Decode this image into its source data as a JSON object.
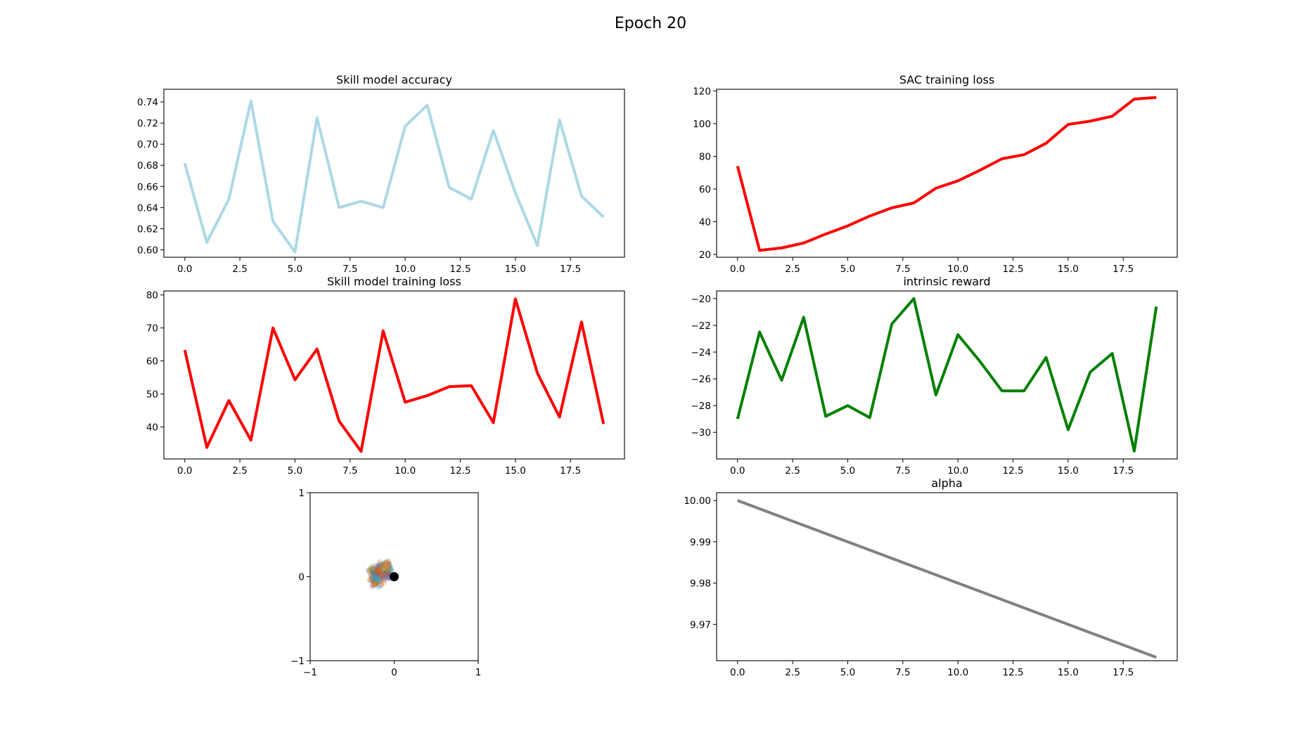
{
  "figure": {
    "suptitle": "Epoch 20"
  },
  "chart_data": [
    {
      "type": "line",
      "title": "Skill model accuracy",
      "xlabel": "",
      "ylabel": "",
      "x": [
        0,
        1,
        2,
        3,
        4,
        5,
        6,
        7,
        8,
        9,
        10,
        11,
        12,
        13,
        14,
        15,
        16,
        17,
        18,
        19
      ],
      "series": [
        {
          "values": [
            0.682,
            0.607,
            0.648,
            0.741,
            0.627,
            0.598,
            0.725,
            0.64,
            0.646,
            0.64,
            0.717,
            0.737,
            0.659,
            0.648,
            0.713,
            0.654,
            0.604,
            0.723,
            0.651,
            0.631
          ],
          "color": "#add8e6"
        }
      ],
      "xlim": [
        -0.95,
        19.95
      ],
      "ylim": [
        0.593,
        0.752
      ],
      "xticks": [
        0,
        2.5,
        5,
        7.5,
        10,
        12.5,
        15,
        17.5
      ],
      "xtick_labels": [
        "0.0",
        "2.5",
        "5.0",
        "7.5",
        "10.0",
        "12.5",
        "15.0",
        "17.5"
      ],
      "yticks": [
        0.6,
        0.62,
        0.64,
        0.66,
        0.68,
        0.7,
        0.72,
        0.74
      ],
      "ytick_labels": [
        "0.60",
        "0.62",
        "0.64",
        "0.66",
        "0.68",
        "0.70",
        "0.72",
        "0.74"
      ],
      "grid": false
    },
    {
      "type": "line",
      "title": "SAC training loss",
      "xlabel": "",
      "ylabel": "",
      "x": [
        0,
        1,
        2,
        3,
        4,
        5,
        6,
        7,
        8,
        9,
        10,
        11,
        12,
        13,
        14,
        15,
        16,
        17,
        18,
        19
      ],
      "series": [
        {
          "values": [
            74,
            22.5,
            24,
            27,
            32.5,
            37.5,
            43.5,
            48.5,
            51.5,
            60.5,
            65,
            71.5,
            78.5,
            81,
            88,
            99.5,
            101.5,
            104.5,
            115,
            116
          ],
          "color": "#ff0000"
        }
      ],
      "xlim": [
        -0.95,
        19.95
      ],
      "ylim": [
        18.3,
        121
      ],
      "xticks": [
        0,
        2.5,
        5,
        7.5,
        10,
        12.5,
        15,
        17.5
      ],
      "xtick_labels": [
        "0.0",
        "2.5",
        "5.0",
        "7.5",
        "10.0",
        "12.5",
        "15.0",
        "17.5"
      ],
      "yticks": [
        20,
        40,
        60,
        80,
        100,
        120
      ],
      "ytick_labels": [
        "20",
        "40",
        "60",
        "80",
        "100",
        "120"
      ],
      "grid": false
    },
    {
      "type": "line",
      "title": "Skill model training loss",
      "xlabel": "",
      "ylabel": "",
      "x": [
        0,
        1,
        2,
        3,
        4,
        5,
        6,
        7,
        8,
        9,
        10,
        11,
        12,
        13,
        14,
        15,
        16,
        17,
        18,
        19
      ],
      "series": [
        {
          "values": [
            63.3,
            33.8,
            48,
            36,
            70,
            54.3,
            63.6,
            41.8,
            32.6,
            69.1,
            47.5,
            49.5,
            52.2,
            52.5,
            41.3,
            78.8,
            56.3,
            43,
            71.8,
            40.9
          ],
          "color": "#ff0000"
        }
      ],
      "xlim": [
        -0.95,
        19.95
      ],
      "ylim": [
        30.3,
        81.2
      ],
      "xticks": [
        0,
        2.5,
        5,
        7.5,
        10,
        12.5,
        15,
        17.5
      ],
      "xtick_labels": [
        "0.0",
        "2.5",
        "5.0",
        "7.5",
        "10.0",
        "12.5",
        "15.0",
        "17.5"
      ],
      "yticks": [
        40,
        50,
        60,
        70,
        80
      ],
      "ytick_labels": [
        "40",
        "50",
        "60",
        "70",
        "80"
      ],
      "grid": false
    },
    {
      "type": "line",
      "title": "intrinsic reward",
      "xlabel": "",
      "ylabel": "",
      "x": [
        0,
        1,
        2,
        3,
        4,
        5,
        6,
        7,
        8,
        9,
        10,
        11,
        12,
        13,
        14,
        15,
        16,
        17,
        18,
        19
      ],
      "series": [
        {
          "values": [
            -29,
            -22.5,
            -26.1,
            -21.4,
            -28.8,
            -28,
            -28.9,
            -21.9,
            -20,
            -27.2,
            -22.7,
            -24.7,
            -26.9,
            -26.9,
            -24.4,
            -29.8,
            -25.5,
            -24.1,
            -31.4,
            -20.6
          ],
          "color": "#008000"
        }
      ],
      "xlim": [
        -0.95,
        19.95
      ],
      "ylim": [
        -31.99,
        -19.43
      ],
      "xticks": [
        0,
        2.5,
        5,
        7.5,
        10,
        12.5,
        15,
        17.5
      ],
      "xtick_labels": [
        "0.0",
        "2.5",
        "5.0",
        "7.5",
        "10.0",
        "12.5",
        "15.0",
        "17.5"
      ],
      "yticks": [
        -30,
        -28,
        -26,
        -24,
        -22,
        -20
      ],
      "ytick_labels": [
        "−30",
        "−28",
        "−26",
        "−24",
        "−22",
        "−20"
      ],
      "grid": false
    },
    {
      "type": "scatter",
      "title": "",
      "xlabel": "",
      "ylabel": "",
      "xlim": [
        -1,
        1
      ],
      "ylim": [
        -1,
        1
      ],
      "xticks": [
        -1,
        0,
        1
      ],
      "xtick_labels": [
        "−1",
        "0",
        "1"
      ],
      "yticks": [
        -1,
        0,
        1
      ],
      "ytick_labels": [
        "−1",
        "0",
        "1"
      ],
      "cluster": {
        "x_range": [
          -0.32,
          -0.02
        ],
        "y_range": [
          -0.12,
          0.2
        ],
        "palette": [
          "#ff7f0e",
          "#1f77b4",
          "#2ca02c",
          "#d62728",
          "#9467bd",
          "#8c564b",
          "#e377c2",
          "#7f7f7f",
          "#bcbd22",
          "#17becf"
        ]
      },
      "highlight_point": {
        "x": 0,
        "y": 0,
        "color": "#000000"
      },
      "grid": false
    },
    {
      "type": "line",
      "title": "alpha",
      "xlabel": "",
      "ylabel": "",
      "x": [
        0,
        1,
        2,
        3,
        4,
        5,
        6,
        7,
        8,
        9,
        10,
        11,
        12,
        13,
        14,
        15,
        16,
        17,
        18,
        19
      ],
      "series": [
        {
          "values": [
            10.0,
            9.998,
            9.996,
            9.994,
            9.992,
            9.99,
            9.988,
            9.986,
            9.984,
            9.982,
            9.98,
            9.978,
            9.976,
            9.974,
            9.972,
            9.97,
            9.968,
            9.966,
            9.964,
            9.962
          ],
          "color": "#808080"
        }
      ],
      "xlim": [
        -0.95,
        19.95
      ],
      "ylim": [
        9.9612,
        10.0019
      ],
      "xticks": [
        0,
        2.5,
        5,
        7.5,
        10,
        12.5,
        15,
        17.5
      ],
      "xtick_labels": [
        "0.0",
        "2.5",
        "5.0",
        "7.5",
        "10.0",
        "12.5",
        "15.0",
        "17.5"
      ],
      "yticks": [
        9.97,
        9.98,
        9.99,
        10.0
      ],
      "ytick_labels": [
        "9.97",
        "9.98",
        "9.99",
        "10.00"
      ],
      "grid": false
    }
  ]
}
